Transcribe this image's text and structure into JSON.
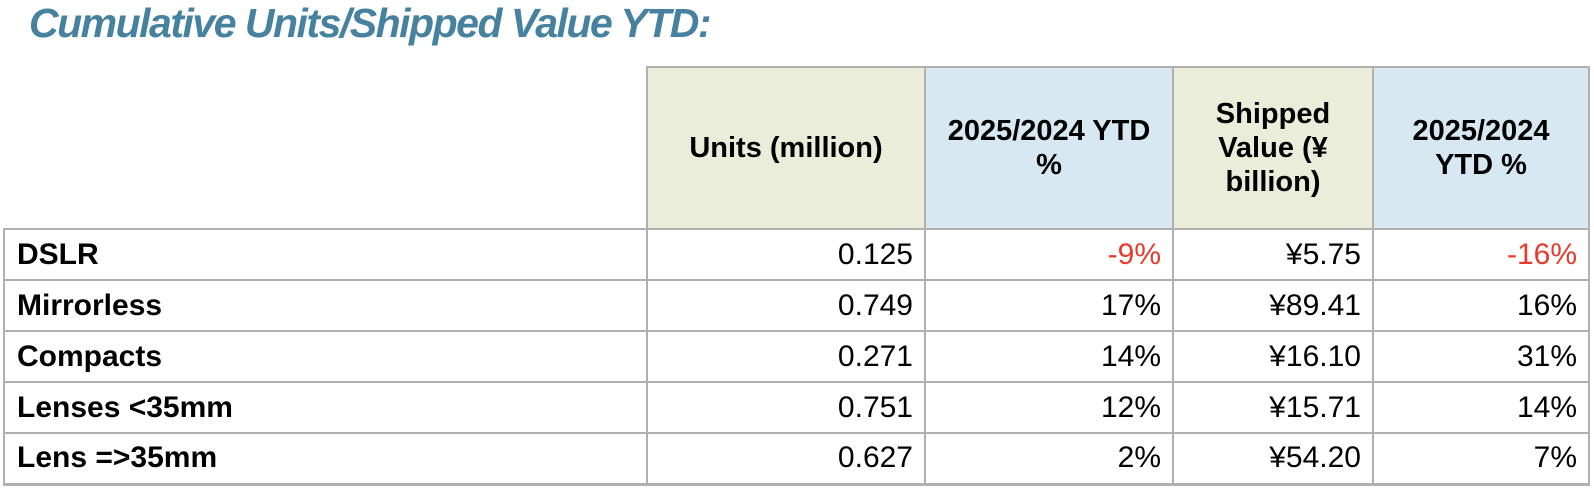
{
  "title": "Cumulative Units/Shipped Value YTD:",
  "chart_data": {
    "type": "table",
    "title": "Cumulative Units/Shipped Value YTD:",
    "columns": [
      "",
      "Units (million)",
      "2025/2024 YTD %",
      "Shipped Value (¥ billion)",
      "2025/2024 YTD %"
    ],
    "rows": [
      [
        "DSLR",
        "0.125",
        "-9%",
        "¥5.75",
        "-16%"
      ],
      [
        "Mirrorless",
        "0.749",
        "17%",
        "¥89.41",
        "16%"
      ],
      [
        "Compacts",
        "0.271",
        "14%",
        "¥16.10",
        "31%"
      ],
      [
        "Lenses <35mm",
        "0.751",
        "12%",
        "¥15.71",
        "14%"
      ],
      [
        "Lens =>35mm",
        "0.627",
        "2%",
        "¥54.20",
        "7%"
      ]
    ],
    "negative_cells_note": "DSLR row YTD % values are negative and shown in red",
    "layout": {
      "header_fill_pattern": [
        "none",
        "green",
        "blue",
        "green",
        "blue"
      ],
      "value_alignment": "right",
      "label_alignment": "left"
    }
  },
  "colors": {
    "title": "#46829f",
    "header_green": "#e9edda",
    "header_blue": "#d7e8f2",
    "negative": "#e53b2c",
    "border": "#b0b0b0"
  }
}
